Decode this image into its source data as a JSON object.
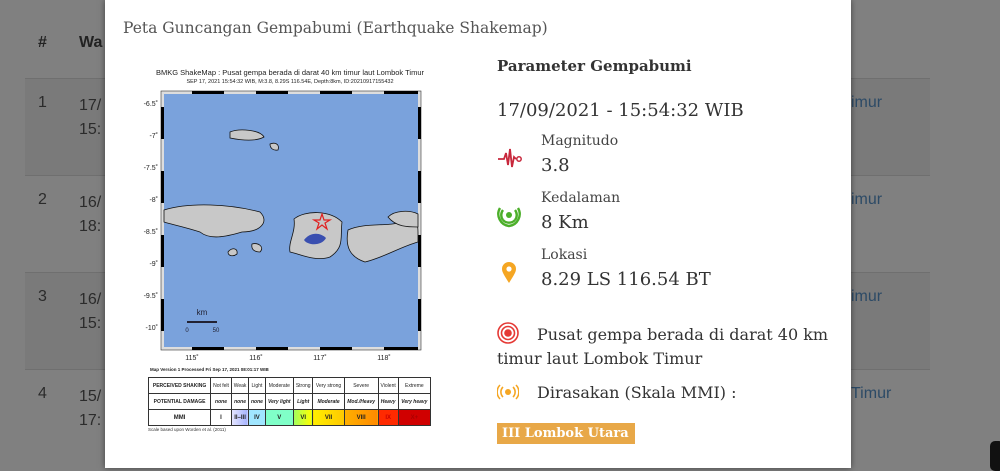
{
  "background_table": {
    "headers": [
      "#",
      "Wa"
    ],
    "rows": [
      {
        "num": "1",
        "time_line1": "17/",
        "time_line2": "15:",
        "location": "imur"
      },
      {
        "num": "2",
        "time_line1": "16/",
        "time_line2": "18:",
        "location": "imur"
      },
      {
        "num": "3",
        "time_line1": "16/",
        "time_line2": "15:",
        "location": "imur"
      },
      {
        "num": "4",
        "time_line1": "15/",
        "time_line2": "17:",
        "location": "Timur"
      }
    ]
  },
  "modal": {
    "title": "Peta Guncangan Gempabumi (Earthquake Shakemap)",
    "shakemap": {
      "title": "BMKG ShakeMap : Pusat gempa berada di darat 40 km timur laut Lombok Timur",
      "subtitle": "SEP 17, 2021 15:54:32 WIB, M:3.8, 8.29S 116.54E, Depth:8km, ID:20210917155432",
      "lat_labels": [
        "-6.5˚",
        "-7˚",
        "-7.5˚",
        "-8˚",
        "-8.5˚",
        "-9˚",
        "-9.5˚",
        "-10˚"
      ],
      "lon_labels": [
        "115˚",
        "116˚",
        "117˚",
        "118˚"
      ],
      "scale_unit": "km",
      "scale_ticks": [
        "0",
        "50"
      ],
      "footer": "Map Version 1 Processed Fri Sep 17, 2021 08:01:17 WIB",
      "legend": {
        "row_labels": [
          "PERCEIVED SHAKING",
          "POTENTIAL DAMAGE",
          "MMI"
        ],
        "shaking": [
          "Not felt",
          "Weak",
          "Light",
          "Moderate",
          "Strong",
          "Very strong",
          "Severe",
          "Violent",
          "Extreme"
        ],
        "damage": [
          "none",
          "none",
          "none",
          "Very light",
          "Light",
          "Moderate",
          "Mod./Heavy",
          "Heavy",
          "Very heavy"
        ],
        "mmi": [
          "I",
          "II–III",
          "IV",
          "V",
          "VI",
          "VII",
          "VIII",
          "IX",
          "X+"
        ],
        "colors": [
          "#ffffff",
          "#bfccff",
          "#a0e6ff",
          "#80ffff",
          "#7aff93",
          "#ffff00",
          "#ffc800",
          "#ff9100",
          "#ff0000",
          "#c80000"
        ],
        "note": "Scale based upon Worden et al. (2011)"
      }
    },
    "params": {
      "heading": "Parameter Gempabumi",
      "datetime": "17/09/2021 - 15:54:32 WIB",
      "magnitude_label": "Magnitudo",
      "magnitude": "3.8",
      "depth_label": "Kedalaman",
      "depth": "8 Km",
      "location_label": "Lokasi",
      "location": "8.29 LS 116.54 BT",
      "description": "Pusat gempa berada di darat 40 km timur laut Lombok Timur",
      "felt_label": "Dirasakan (Skala MMI) :",
      "felt_badge": "III Lombok Utara",
      "colors": {
        "magnitude": "#c8283c",
        "depth": "#4caf2a",
        "location": "#f5a623",
        "epicenter": "#e53935",
        "felt": "#f5a623",
        "badge": "#e8a848"
      }
    }
  }
}
